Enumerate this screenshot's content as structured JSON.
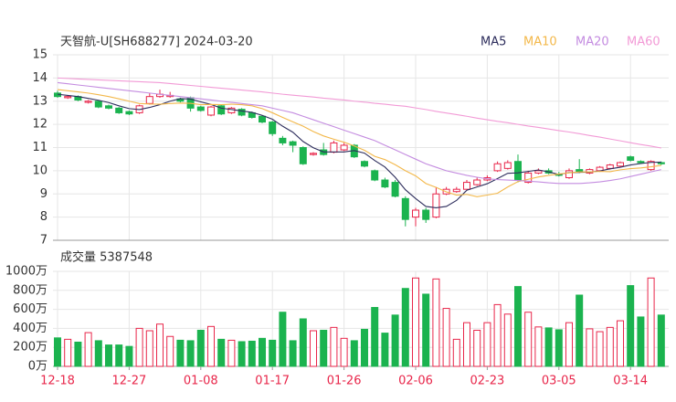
{
  "chart_data": [
    {
      "type": "candlestick",
      "title": "天智航-U[SH688277] 2024-03-20",
      "up_color": "#e8264a",
      "down_color": "#1bb34f",
      "open": [
        13.35,
        13.15,
        13.2,
        12.95,
        13.0,
        12.8,
        12.7,
        12.55,
        12.5,
        12.9,
        13.2,
        13.2,
        13.1,
        13.15,
        12.75,
        12.4,
        12.8,
        12.5,
        12.65,
        12.5,
        12.35,
        12.1,
        11.4,
        11.25,
        11.0,
        10.7,
        10.9,
        10.8,
        10.9,
        11.1,
        10.4,
        10.0,
        9.6,
        9.5,
        8.8,
        8.0,
        8.3,
        8.0,
        9.0,
        9.1,
        9.2,
        9.4,
        9.6,
        10.0,
        10.1,
        10.4,
        9.5,
        9.9,
        10.0,
        9.85,
        9.7,
        10.05,
        9.9,
        10.0,
        10.1,
        10.2,
        10.6,
        10.4,
        10.05,
        10.35
      ],
      "high": [
        13.45,
        13.25,
        13.25,
        13.05,
        13.05,
        12.85,
        12.75,
        12.6,
        12.85,
        13.35,
        13.5,
        13.4,
        13.15,
        13.2,
        12.8,
        12.8,
        12.85,
        12.75,
        12.7,
        12.55,
        12.4,
        12.15,
        11.5,
        11.3,
        11.05,
        10.8,
        11.2,
        11.3,
        11.2,
        11.15,
        10.45,
        10.05,
        9.7,
        9.6,
        8.9,
        8.4,
        8.4,
        9.3,
        9.3,
        9.3,
        9.6,
        9.7,
        9.8,
        10.4,
        10.45,
        10.7,
        10.0,
        10.1,
        10.1,
        9.95,
        10.1,
        10.5,
        10.1,
        10.2,
        10.3,
        10.4,
        10.65,
        10.45,
        10.45,
        10.4
      ],
      "low": [
        13.15,
        13.1,
        13.0,
        12.9,
        12.7,
        12.65,
        12.45,
        12.4,
        12.45,
        12.85,
        13.15,
        13.15,
        12.95,
        12.55,
        12.55,
        12.35,
        12.4,
        12.45,
        12.35,
        12.25,
        12.05,
        11.5,
        11.1,
        10.8,
        10.25,
        10.65,
        10.65,
        10.75,
        10.85,
        10.55,
        10.15,
        9.55,
        9.25,
        8.85,
        7.6,
        7.6,
        7.75,
        7.95,
        8.95,
        9.05,
        9.15,
        9.35,
        9.55,
        9.95,
        10.05,
        9.5,
        9.45,
        9.85,
        9.85,
        9.75,
        9.65,
        9.9,
        9.85,
        9.95,
        10.05,
        10.15,
        10.4,
        10.3,
        10.0,
        10.25
      ],
      "close": [
        13.2,
        13.2,
        13.05,
        13.0,
        12.75,
        12.7,
        12.5,
        12.45,
        12.8,
        13.2,
        13.3,
        13.25,
        13.0,
        12.7,
        12.6,
        12.75,
        12.45,
        12.7,
        12.4,
        12.3,
        12.1,
        11.6,
        11.2,
        11.1,
        10.3,
        10.75,
        10.7,
        11.2,
        11.1,
        10.6,
        10.2,
        9.6,
        9.3,
        8.9,
        7.9,
        8.3,
        7.9,
        9.0,
        9.2,
        9.2,
        9.5,
        9.6,
        9.7,
        10.3,
        10.35,
        9.6,
        9.9,
        10.0,
        9.9,
        9.8,
        10.0,
        9.95,
        10.05,
        10.15,
        10.25,
        10.35,
        10.45,
        10.35,
        10.4,
        10.3
      ],
      "lines": [
        {
          "name": "MA5",
          "color": "#2d2d5c",
          "values": [
            13.3,
            13.25,
            13.2,
            13.12,
            13.04,
            12.94,
            12.8,
            12.68,
            12.64,
            12.73,
            12.85,
            13.0,
            13.11,
            13.09,
            12.97,
            12.86,
            12.7,
            12.64,
            12.58,
            12.52,
            12.39,
            12.22,
            11.92,
            11.66,
            11.26,
            10.99,
            10.81,
            10.81,
            10.81,
            10.87,
            10.76,
            10.44,
            10.16,
            9.72,
            9.18,
            8.8,
            8.46,
            8.4,
            8.46,
            8.72,
            9.16,
            9.3,
            9.44,
            9.66,
            9.89,
            9.91,
            9.97,
            10.03,
            9.95,
            9.84,
            9.92,
            9.93,
            9.94,
            9.99,
            10.08,
            10.15,
            10.25,
            10.31,
            10.36,
            10.37
          ]
        },
        {
          "name": "MA10",
          "color": "#f3b84a",
          "values": [
            13.5,
            13.45,
            13.4,
            13.35,
            13.28,
            13.2,
            13.1,
            13.0,
            12.9,
            12.88,
            12.87,
            12.9,
            12.92,
            12.91,
            12.85,
            12.86,
            12.85,
            12.87,
            12.85,
            12.8,
            12.68,
            12.5,
            12.3,
            12.11,
            11.92,
            11.69,
            11.5,
            11.36,
            11.23,
            11.07,
            10.88,
            10.62,
            10.48,
            10.26,
            10.0,
            9.78,
            9.45,
            9.28,
            9.09,
            8.95,
            8.98,
            8.88,
            8.95,
            9.03,
            9.3,
            9.53,
            9.63,
            9.73,
            9.8,
            9.86,
            9.91,
            9.95,
            9.95,
            9.97,
            9.96,
            10.04,
            10.09,
            10.12,
            10.17,
            10.23
          ]
        },
        {
          "name": "MA20",
          "color": "#c48ce0",
          "values": [
            13.8,
            13.75,
            13.7,
            13.65,
            13.6,
            13.55,
            13.5,
            13.45,
            13.4,
            13.35,
            13.3,
            13.25,
            13.2,
            13.15,
            13.1,
            13.05,
            13.0,
            12.95,
            12.9,
            12.85,
            12.8,
            12.7,
            12.6,
            12.5,
            12.35,
            12.2,
            12.05,
            11.9,
            11.75,
            11.6,
            11.45,
            11.3,
            11.1,
            10.9,
            10.7,
            10.5,
            10.3,
            10.15,
            10.0,
            9.9,
            9.8,
            9.72,
            9.65,
            9.62,
            9.6,
            9.58,
            9.55,
            9.52,
            9.48,
            9.45,
            9.45,
            9.45,
            9.48,
            9.52,
            9.58,
            9.65,
            9.75,
            9.85,
            9.95,
            10.05
          ]
        },
        {
          "name": "MA60",
          "color": "#f29ad6",
          "values": [
            14.0,
            13.98,
            13.96,
            13.94,
            13.92,
            13.9,
            13.88,
            13.86,
            13.84,
            13.82,
            13.8,
            13.76,
            13.72,
            13.68,
            13.64,
            13.6,
            13.56,
            13.52,
            13.48,
            13.44,
            13.4,
            13.35,
            13.3,
            13.26,
            13.22,
            13.18,
            13.13,
            13.09,
            13.05,
            13.0,
            12.96,
            12.91,
            12.87,
            12.82,
            12.78,
            12.71,
            12.64,
            12.56,
            12.49,
            12.42,
            12.35,
            12.27,
            12.2,
            12.13,
            12.07,
            12.0,
            11.93,
            11.87,
            11.8,
            11.73,
            11.67,
            11.6,
            11.52,
            11.45,
            11.37,
            11.29,
            11.21,
            11.13,
            11.06,
            10.98
          ]
        }
      ],
      "ylim": [
        7,
        15
      ],
      "yticks": [
        7,
        8,
        9,
        10,
        11,
        12,
        13,
        14,
        15
      ],
      "grid": true
    },
    {
      "type": "bar",
      "title": "成交量 5387548",
      "categories": [
        "12-18",
        null,
        null,
        null,
        null,
        null,
        null,
        "12-27",
        null,
        null,
        null,
        null,
        null,
        null,
        "01-08",
        null,
        null,
        null,
        null,
        null,
        null,
        "01-17",
        null,
        null,
        null,
        null,
        null,
        null,
        "01-26",
        null,
        null,
        null,
        null,
        null,
        null,
        "02-06",
        null,
        null,
        null,
        null,
        null,
        null,
        "02-23",
        null,
        null,
        null,
        null,
        null,
        null,
        "03-05",
        null,
        null,
        null,
        null,
        null,
        null,
        "03-14",
        null,
        null,
        null
      ],
      "values": [
        300,
        285,
        255,
        355,
        270,
        225,
        225,
        210,
        400,
        375,
        445,
        315,
        275,
        270,
        380,
        420,
        285,
        275,
        260,
        265,
        295,
        275,
        570,
        270,
        500,
        375,
        380,
        410,
        295,
        270,
        390,
        620,
        350,
        540,
        820,
        930,
        760,
        920,
        610,
        285,
        460,
        380,
        460,
        650,
        550,
        840,
        570,
        415,
        405,
        385,
        460,
        750,
        395,
        365,
        410,
        480,
        850,
        520,
        930,
        540
      ],
      "ylim": [
        0,
        1000
      ],
      "yticks": [
        {
          "value": 0,
          "label": "0万"
        },
        {
          "value": 200,
          "label": "200万"
        },
        {
          "value": 400,
          "label": "400万"
        },
        {
          "value": 600,
          "label": "600万"
        },
        {
          "value": 800,
          "label": "800万"
        },
        {
          "value": 1000,
          "label": "1000万"
        }
      ],
      "grid": true
    }
  ]
}
